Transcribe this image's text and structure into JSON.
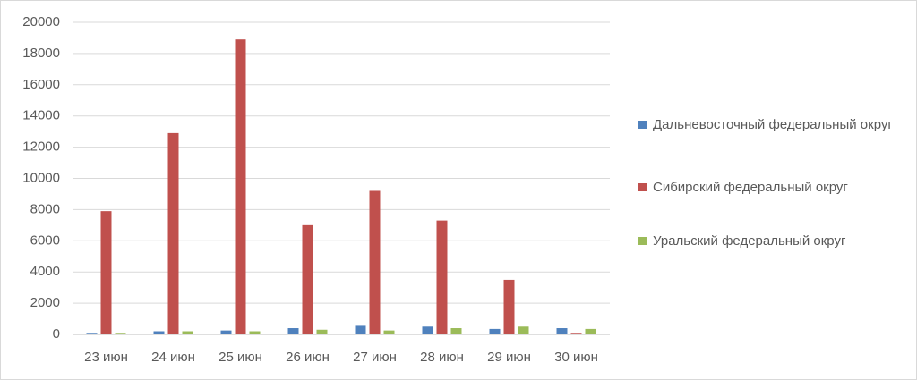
{
  "chart_data": {
    "type": "bar",
    "categories": [
      "23 июн",
      "24 июн",
      "25 июн",
      "26 июн",
      "27 июн",
      "28 июн",
      "29 июн",
      "30 июн"
    ],
    "series": [
      {
        "name": "Дальневосточный федеральный округ",
        "color": "#4f81bd",
        "values": [
          100,
          200,
          250,
          400,
          550,
          500,
          350,
          400
        ]
      },
      {
        "name": "Сибирский федеральный округ",
        "color": "#c0504d",
        "values": [
          7900,
          12900,
          18900,
          7000,
          9200,
          7300,
          3500,
          100
        ]
      },
      {
        "name": "Уральский федеральный округ",
        "color": "#9bbb59",
        "values": [
          100,
          200,
          200,
          300,
          250,
          400,
          500,
          350
        ]
      }
    ],
    "ylim": [
      0,
      20000
    ],
    "yticks": [
      0,
      2000,
      4000,
      6000,
      8000,
      10000,
      12000,
      14000,
      16000,
      18000,
      20000
    ],
    "grid": true,
    "legend": "right"
  }
}
